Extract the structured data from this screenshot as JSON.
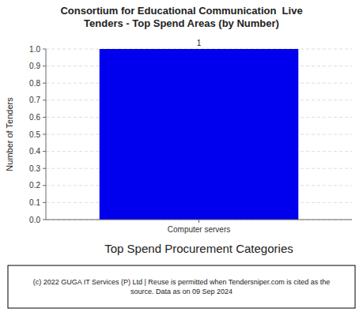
{
  "chart_data": {
    "type": "bar",
    "title": "Consortium for Educational Communication  Live\nTenders - Top Spend Areas (by Number)",
    "categories": [
      "Computer servers"
    ],
    "values": [
      1
    ],
    "color": "#0000ee",
    "ylabel": "Number of Tenders",
    "xlabel": "Top Spend Procurement Categories",
    "ylim": [
      0.0,
      1.0
    ],
    "yticks": [
      {
        "value": 0,
        "label": "0.0"
      },
      0.1,
      0.2,
      0.3,
      0.4,
      0.5,
      0.6,
      0.7,
      0.8,
      0.9,
      {
        "value": 1,
        "label": "1.0"
      }
    ],
    "grid": true,
    "data_labels": true,
    "annotations": [
      "(c) 2022 GUGA IT Services (P) Ltd | Reuse is permitted when Tendersniper.com is cited as the\nsource. Data as on 09 Sep 2024"
    ]
  }
}
